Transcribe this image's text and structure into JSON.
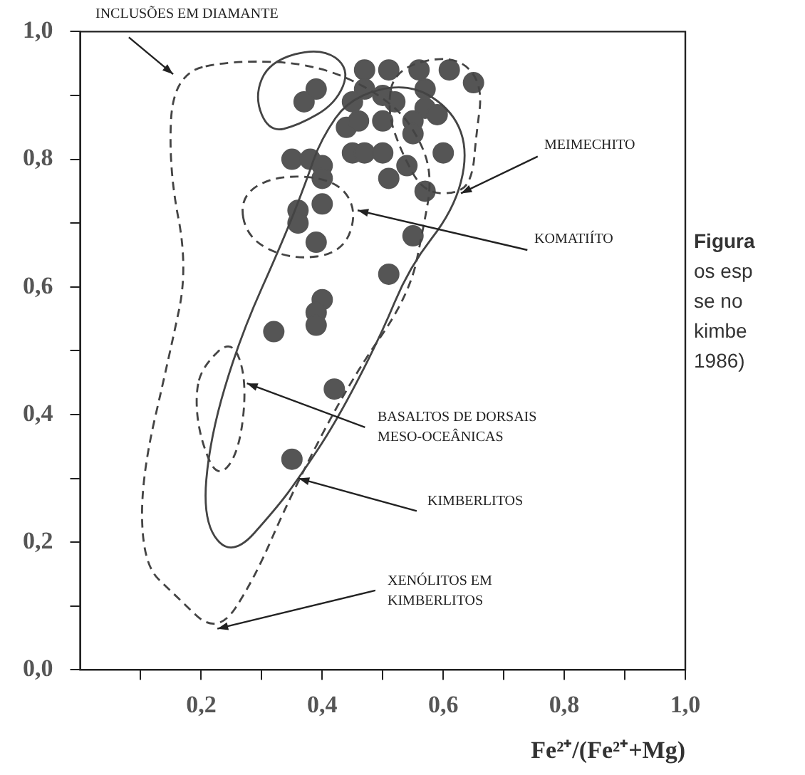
{
  "chart_data": {
    "type": "scatter",
    "xlabel": "Fe²⁺/(Fe²⁺+Mg)",
    "xlim": [
      0,
      1
    ],
    "ylim": [
      0,
      1
    ],
    "xticks": [
      {
        "value": 0.1,
        "label": null
      },
      {
        "value": 0.2,
        "label": "0,2"
      },
      {
        "value": 0.3,
        "label": null
      },
      {
        "value": 0.4,
        "label": "0,4"
      },
      {
        "value": 0.5,
        "label": null
      },
      {
        "value": 0.6,
        "label": "0,6"
      },
      {
        "value": 0.7,
        "label": null
      },
      {
        "value": 0.8,
        "label": "0,8"
      },
      {
        "value": 0.9,
        "label": null
      },
      {
        "value": 1,
        "label": "1,0"
      }
    ],
    "yticks": [
      {
        "value": 0,
        "label": "0,0"
      },
      {
        "value": 0.1,
        "label": null
      },
      {
        "value": 0.2,
        "label": "0,2"
      },
      {
        "value": 0.3,
        "label": null
      },
      {
        "value": 0.4,
        "label": "0,4"
      },
      {
        "value": 0.5,
        "label": null
      },
      {
        "value": 0.6,
        "label": "0,6"
      },
      {
        "value": 0.7,
        "label": null
      },
      {
        "value": 0.8,
        "label": "0,8"
      },
      {
        "value": 0.9,
        "label": null
      },
      {
        "value": 1,
        "label": "1,0"
      }
    ],
    "grid": false,
    "legend": false,
    "series": [
      {
        "type": "scatter",
        "marker": "circle",
        "color": "#555555",
        "x": [
          0.47,
          0.51,
          0.56,
          0.61,
          0.65,
          0.57,
          0.39,
          0.37,
          0.47,
          0.45,
          0.5,
          0.52,
          0.57,
          0.59,
          0.44,
          0.46,
          0.5,
          0.55,
          0.55,
          0.35,
          0.38,
          0.4,
          0.45,
          0.47,
          0.5,
          0.4,
          0.6,
          0.54,
          0.51,
          0.57,
          0.36,
          0.36,
          0.4,
          0.39,
          0.55,
          0.51,
          0.4,
          0.39,
          0.39,
          0.32,
          0.42,
          0.35
        ],
        "values": [
          0.94,
          0.94,
          0.94,
          0.94,
          0.92,
          0.91,
          0.91,
          0.89,
          0.91,
          0.89,
          0.9,
          0.89,
          0.88,
          0.87,
          0.85,
          0.86,
          0.86,
          0.86,
          0.84,
          0.8,
          0.8,
          0.79,
          0.81,
          0.81,
          0.81,
          0.77,
          0.81,
          0.79,
          0.77,
          0.75,
          0.72,
          0.7,
          0.73,
          0.67,
          0.68,
          0.62,
          0.58,
          0.56,
          0.54,
          0.53,
          0.44,
          0.33
        ]
      }
    ],
    "annotations": [
      "INCLUSÕES EM DIAMANTE",
      "MEIMECHITO",
      "KOMATIÍTO",
      "BASALTOS DE DORSAIS\nMESO-OCEÂNICAS",
      "KIMBERLITOS",
      "XENÓLITOS EM\nKIMBERLITOS",
      "Figura",
      "os esp",
      "se no",
      "kimbe",
      "1986)"
    ]
  }
}
